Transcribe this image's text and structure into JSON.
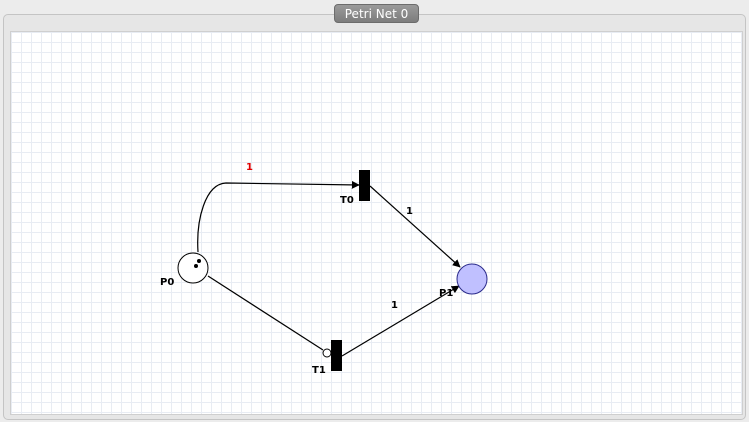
{
  "window": {
    "tab_title": "Petri Net 0"
  },
  "net": {
    "places": [
      {
        "id": "P0",
        "label": "P0",
        "tokens": 2,
        "fill": "#ffffff"
      },
      {
        "id": "P1",
        "label": "P1",
        "tokens": 0,
        "fill": "#c0c0ff"
      }
    ],
    "transitions": [
      {
        "id": "T0",
        "label": "T0"
      },
      {
        "id": "T1",
        "label": "T1"
      }
    ],
    "arcs": [
      {
        "from": "P0",
        "to": "T0",
        "weight": "1",
        "weight_color": "#e00000",
        "kind": "normal"
      },
      {
        "from": "T0",
        "to": "P1",
        "weight": "1",
        "weight_color": "#000000",
        "kind": "normal"
      },
      {
        "from": "P0",
        "to": "T1",
        "weight": "",
        "kind": "inhibitor"
      },
      {
        "from": "T1",
        "to": "P1",
        "weight": "1",
        "weight_color": "#000000",
        "kind": "normal"
      }
    ]
  }
}
